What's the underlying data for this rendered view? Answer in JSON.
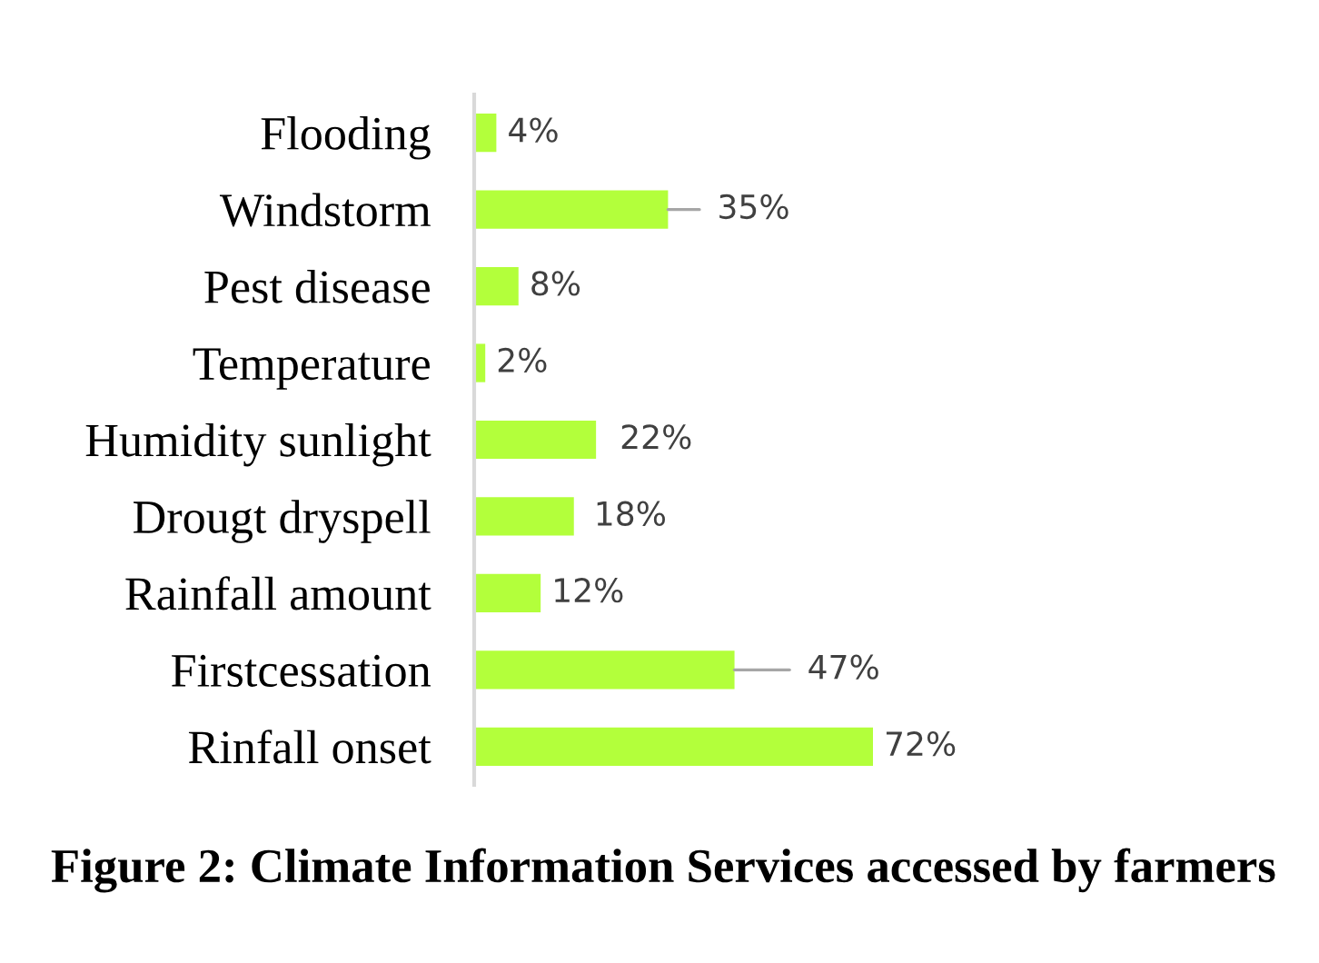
{
  "chart_data": {
    "type": "bar",
    "orientation": "horizontal",
    "title": "Figure 2: Climate Information Services accessed by farmers",
    "categories": [
      "Flooding",
      "Windstorm",
      "Pest disease",
      "Temperature",
      "Humidity sunlight",
      "Drougt dryspell",
      "Rainfall amount",
      "Firstcessation",
      "Rinfall onset"
    ],
    "values": [
      4,
      35,
      8,
      2,
      22,
      18,
      12,
      47,
      72
    ],
    "value_labels": [
      "4%",
      "35%",
      "8%",
      "2%",
      "22%",
      "18%",
      "12%",
      "47%",
      "72%"
    ],
    "color": "#b3ff3b"
  }
}
